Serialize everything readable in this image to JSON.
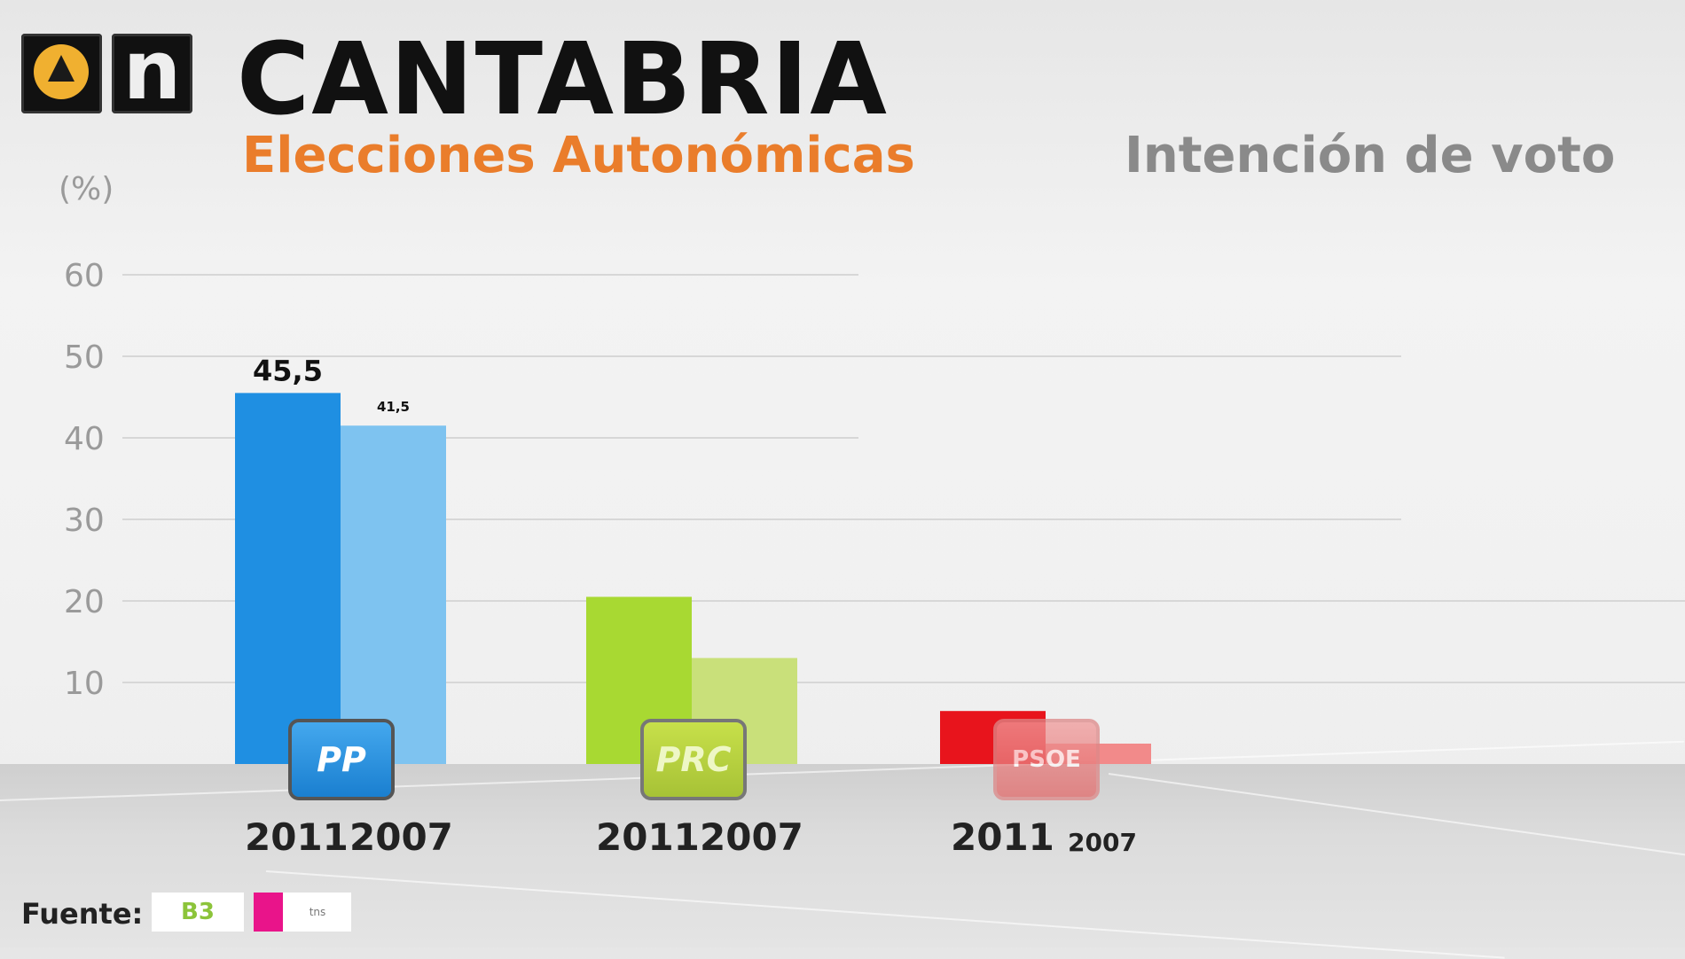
{
  "header": {
    "title": "CANTABRIA",
    "subtitle": "Elecciones Autonómicas",
    "right_title": "Intención de voto"
  },
  "logos": {
    "channel_a3": "antena3-logo",
    "channel_n": "n",
    "parties": [
      "PP",
      "PRC",
      "PSOE"
    ]
  },
  "source": {
    "label": "Fuente:",
    "logos": [
      "B3",
      "tns"
    ]
  },
  "colors": {
    "pp_2011": "#1f8fe2",
    "pp_2007": "#7ec3f0",
    "prc_2011": "#a8d932",
    "prc_2007": "#c9e07a",
    "psoe_2011": "#e8141c",
    "psoe_2007": "#f28a8a",
    "accent_orange": "#ea7d2b"
  },
  "chart_data": {
    "type": "bar",
    "ylabel": "(%)",
    "ylim": [
      0,
      60
    ],
    "yticks": [
      10,
      20,
      30,
      40,
      50,
      60
    ],
    "grid": true,
    "groups": [
      {
        "party": "PP",
        "bars": [
          {
            "label": "2011",
            "value": 45.5,
            "value_label": "45,5"
          },
          {
            "label": "2007",
            "value": 41.5,
            "value_label": "41,5"
          }
        ]
      },
      {
        "party": "PRC",
        "bars": [
          {
            "label": "2011",
            "value": 20.5,
            "value_label": ""
          },
          {
            "label": "2007",
            "value": 13,
            "value_label": ""
          }
        ]
      },
      {
        "party": "PSOE",
        "bars": [
          {
            "label": "2011",
            "value": 6.5,
            "value_label": ""
          },
          {
            "label": "2007",
            "value": 2.5,
            "value_label": ""
          }
        ]
      }
    ]
  }
}
